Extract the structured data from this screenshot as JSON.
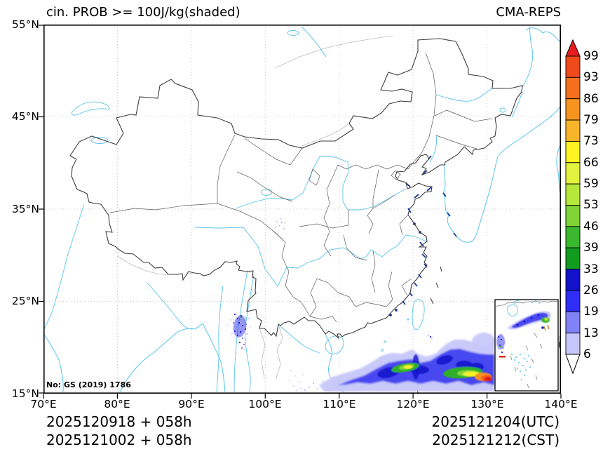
{
  "titles": {
    "left": "cin. PROB >= 100J/kg(shaded)",
    "right": "CMA-REPS"
  },
  "license": "No: GS (2019) 1786",
  "axes": {
    "lon_labels": [
      "70°E",
      "80°E",
      "90°E",
      "100°E",
      "110°E",
      "120°E",
      "130°E",
      "140°E"
    ],
    "lat_labels": [
      "55°N",
      "45°N",
      "35°N",
      "25°N",
      "15°N"
    ]
  },
  "footer": {
    "left1": "2025120918 + 058h",
    "left2": "2025121002 + 058h",
    "right1": "2025121204(UTC)",
    "right2": "2025121212(CST)"
  },
  "colorbar": {
    "levels": [
      6,
      13,
      19,
      26,
      33,
      39,
      46,
      53,
      59,
      66,
      73,
      79,
      86,
      93,
      99
    ],
    "colors": [
      "#c6c6fa",
      "#8282f8",
      "#2e2ef6",
      "#1212cc",
      "#129c1e",
      "#3ab82e",
      "#80d436",
      "#b6e83c",
      "#e2f23e",
      "#fcf320",
      "#f9b52a",
      "#f79420",
      "#f4701c",
      "#ef4a1c"
    ],
    "under_color": "#ffffff",
    "over_color": "#e81c1e"
  },
  "map_colors": {
    "coast": "#58c4ea",
    "border": "#3c3c3c",
    "grid": "#bbbbbb",
    "red_mark": "#e82018"
  },
  "chart_data": {
    "type": "heatmap",
    "title": "cin. PROB >= 100J/kg(shaded)",
    "model": "CMA-REPS",
    "variable": "Probability of CIN >= 100 J/kg",
    "units": "%",
    "x_axis": {
      "kind": "longitude",
      "ticks": [
        "70°E",
        "80°E",
        "90°E",
        "100°E",
        "110°E",
        "120°E",
        "130°E",
        "140°E"
      ],
      "range": [
        70,
        140
      ]
    },
    "y_axis": {
      "kind": "latitude",
      "ticks": [
        "55°N",
        "45°N",
        "35°N",
        "25°N",
        "15°N"
      ],
      "range": [
        15,
        55
      ]
    },
    "grid": "dotted",
    "legend_position": "right-colorbar",
    "levels": [
      6,
      13,
      19,
      26,
      33,
      39,
      46,
      53,
      59,
      66,
      73,
      79,
      86,
      93,
      99
    ],
    "palette": [
      "#c6c6fa",
      "#8282f8",
      "#2e2ef6",
      "#1212cc",
      "#129c1e",
      "#3ab82e",
      "#80d436",
      "#b6e83c",
      "#e2f23e",
      "#fcf320",
      "#f9b52a",
      "#f79420",
      "#f4701c",
      "#ef4a1c"
    ],
    "shaded_regions": [
      {
        "area": "near Myanmar / Yunnan border, ~96-97E, 21-23N",
        "values": "speckled cells mostly 6-33%, isolated 33-46%"
      },
      {
        "area": "Sichuan basin, ~103E, 31N",
        "values": "sparse 6-13%"
      },
      {
        "area": "zonal band 15-20N from ~107E to 140E",
        "values": "widespread 6-33%; cores 33-73% near 118-121E; maximum 73-99%+ near 128-131E, 16-17N"
      },
      {
        "area": "South China Sea (bottom-right inset)",
        "values": "diagonal band 6-59% with 33-73% core; small 6-46% cluster on west side; scattered islands"
      }
    ],
    "inset": {
      "present": true,
      "location": "bottom-right",
      "content": "South China Sea"
    },
    "annotations": [
      "2025120918 + 058h",
      "2025121002 + 058h",
      "2025121204(UTC)",
      "2025121212(CST)",
      "No: GS (2019) 1786"
    ]
  }
}
